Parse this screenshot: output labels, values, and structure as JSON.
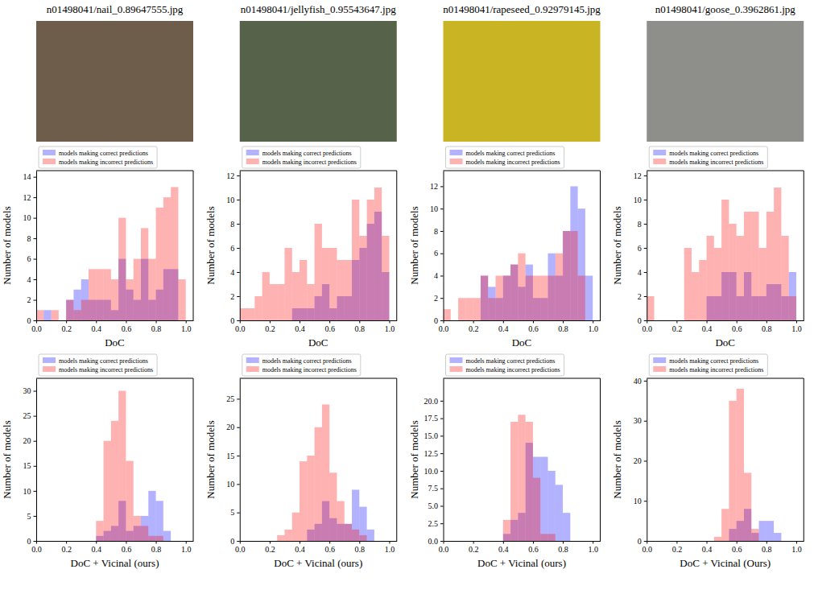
{
  "images": [
    {
      "caption": "n01498041/nail_0.89647555.jpg"
    },
    {
      "caption": "n01498041/jellyfish_0.95543647.jpg"
    },
    {
      "caption": "n01498041/rapeseed_0.92979145.jpg"
    },
    {
      "caption": "n01498041/goose_0.3962861.jpg"
    }
  ],
  "chart_data": [
    {
      "type": "histogram",
      "xlabel": "DoC",
      "ylabel": "Number of models",
      "legend": "top",
      "grid": false,
      "bins": [
        0,
        0.05,
        0.1,
        0.15,
        0.2,
        0.25,
        0.3,
        0.35,
        0.4,
        0.45,
        0.5,
        0.55,
        0.6,
        0.65,
        0.7,
        0.75,
        0.8,
        0.85,
        0.9,
        0.95,
        1
      ],
      "xlim": [
        0,
        1.05
      ],
      "xticks": [
        {
          "value": 0,
          "label": "0.0"
        },
        0.2,
        0.4,
        0.6,
        0.8,
        {
          "value": 1,
          "label": "1.0"
        }
      ],
      "ylim": [
        0,
        14.6
      ],
      "yticks": [
        0,
        2,
        4,
        6,
        8,
        10,
        12,
        14
      ],
      "series": [
        {
          "name": "models making correct predictions",
          "color": "#0000ff",
          "values": [
            0,
            1,
            0,
            0,
            2,
            3,
            4,
            2,
            2,
            2,
            1,
            6,
            3,
            2,
            6,
            2,
            3,
            5,
            5,
            0
          ]
        },
        {
          "name": "models making incorrect predictions",
          "color": "#ff0000",
          "values": [
            1,
            0,
            1,
            0,
            2,
            1,
            2,
            5,
            5,
            5,
            4,
            10,
            4,
            6,
            9,
            6,
            11,
            12,
            13,
            4
          ]
        }
      ]
    },
    {
      "type": "histogram",
      "xlabel": "DoC",
      "ylabel": "Number of models",
      "legend": "top",
      "grid": false,
      "bins": [
        0,
        0.05,
        0.1,
        0.15,
        0.2,
        0.25,
        0.3,
        0.35,
        0.4,
        0.45,
        0.5,
        0.55,
        0.6,
        0.65,
        0.7,
        0.75,
        0.8,
        0.85,
        0.9,
        0.95,
        1
      ],
      "xlim": [
        0,
        1.05
      ],
      "xticks": [
        {
          "value": 0,
          "label": "0.0"
        },
        0.2,
        0.4,
        0.6,
        0.8,
        {
          "value": 1,
          "label": "1.0"
        }
      ],
      "ylim": [
        0,
        12.4
      ],
      "yticks": [
        0,
        2,
        4,
        6,
        8,
        10,
        12
      ],
      "series": [
        {
          "name": "models making correct predictions",
          "color": "#0000ff",
          "values": [
            0,
            0,
            0,
            0,
            0,
            0,
            0,
            1,
            1,
            1,
            2,
            3,
            1,
            2,
            2,
            5,
            6,
            8,
            9,
            4
          ]
        },
        {
          "name": "models making incorrect predictions",
          "color": "#ff0000",
          "values": [
            1,
            1,
            2,
            4,
            3,
            3,
            6,
            4,
            5,
            3,
            8,
            6,
            6,
            5,
            5,
            10,
            7,
            10,
            11,
            7
          ]
        }
      ]
    },
    {
      "type": "histogram",
      "xlabel": "DoC",
      "ylabel": "Number of models",
      "legend": "top",
      "grid": false,
      "bins": [
        0,
        0.05,
        0.1,
        0.15,
        0.2,
        0.25,
        0.3,
        0.35,
        0.4,
        0.45,
        0.5,
        0.55,
        0.6,
        0.65,
        0.7,
        0.75,
        0.8,
        0.85,
        0.9,
        0.95,
        1
      ],
      "xlim": [
        0,
        1.05
      ],
      "xticks": [
        {
          "value": 0,
          "label": "0.0"
        },
        0.2,
        0.4,
        0.6,
        0.8,
        {
          "value": 1,
          "label": "1.0"
        }
      ],
      "ylim": [
        0,
        13.4
      ],
      "yticks": [
        0,
        2,
        4,
        6,
        8,
        10,
        12
      ],
      "series": [
        {
          "name": "models making correct predictions",
          "color": "#0000ff",
          "values": [
            0,
            0,
            0,
            0,
            0,
            4,
            3,
            2,
            4,
            5,
            3,
            5,
            2,
            2,
            6,
            4,
            8,
            12,
            10,
            4
          ]
        },
        {
          "name": "models making incorrect predictions",
          "color": "#ff0000",
          "values": [
            1,
            0,
            2,
            2,
            2,
            4,
            2,
            4,
            4,
            5,
            6,
            4,
            4,
            4,
            4,
            6,
            8,
            8,
            4,
            0
          ]
        }
      ]
    },
    {
      "type": "histogram",
      "xlabel": "DoC",
      "ylabel": "Number of models",
      "legend": "top",
      "grid": false,
      "bins": [
        0,
        0.05,
        0.1,
        0.15,
        0.2,
        0.25,
        0.3,
        0.35,
        0.4,
        0.45,
        0.5,
        0.55,
        0.6,
        0.65,
        0.7,
        0.75,
        0.8,
        0.85,
        0.9,
        0.95,
        1
      ],
      "xlim": [
        0,
        1.05
      ],
      "xticks": [
        {
          "value": 0,
          "label": "0.0"
        },
        0.2,
        0.4,
        0.6,
        0.8,
        {
          "value": 1,
          "label": "1.0"
        }
      ],
      "ylim": [
        0,
        12.4
      ],
      "yticks": [
        0,
        2,
        4,
        6,
        8,
        10,
        12
      ],
      "series": [
        {
          "name": "models making correct predictions",
          "color": "#0000ff",
          "values": [
            0,
            0,
            0,
            0,
            0,
            0,
            0,
            0,
            2,
            2,
            4,
            4,
            2,
            4,
            2,
            2,
            3,
            3,
            2,
            4
          ]
        },
        {
          "name": "models making incorrect predictions",
          "color": "#ff0000",
          "values": [
            2,
            0,
            0,
            0,
            0,
            6,
            4,
            5,
            7,
            6,
            10,
            8,
            7,
            9,
            9,
            6,
            9,
            11,
            7,
            2
          ]
        }
      ]
    },
    {
      "type": "histogram",
      "xlabel": "DoC + Vicinal (ours)",
      "ylabel": "Number of models",
      "legend": "top",
      "grid": false,
      "bins": [
        0,
        0.05,
        0.1,
        0.15,
        0.2,
        0.25,
        0.3,
        0.35,
        0.4,
        0.45,
        0.5,
        0.55,
        0.6,
        0.65,
        0.7,
        0.75,
        0.8,
        0.85,
        0.9,
        0.95,
        1
      ],
      "xlim": [
        0,
        1.05
      ],
      "xticks": [
        {
          "value": 0,
          "label": "0.0"
        },
        0.2,
        0.4,
        0.6,
        0.8,
        {
          "value": 1,
          "label": "1.0"
        }
      ],
      "ylim": [
        0,
        32.5
      ],
      "yticks": [
        0,
        5,
        10,
        15,
        20,
        25,
        30
      ],
      "series": [
        {
          "name": "models making correct predictions",
          "color": "#0000ff",
          "values": [
            0,
            0,
            0,
            0,
            0,
            0,
            0,
            0,
            1,
            2,
            3,
            8,
            2,
            3,
            5,
            10,
            8,
            2,
            0,
            0
          ]
        },
        {
          "name": "models making incorrect predictions",
          "color": "#ff0000",
          "values": [
            0,
            0,
            0,
            0,
            0,
            0,
            0,
            0,
            4,
            20,
            24,
            30,
            16,
            5,
            3,
            1,
            1,
            0,
            0,
            0
          ]
        }
      ]
    },
    {
      "type": "histogram",
      "xlabel": "DoC + Vicinal (ours)",
      "ylabel": "Number of models",
      "legend": "top",
      "grid": false,
      "bins": [
        0,
        0.05,
        0.1,
        0.15,
        0.2,
        0.25,
        0.3,
        0.35,
        0.4,
        0.45,
        0.5,
        0.55,
        0.6,
        0.65,
        0.7,
        0.75,
        0.8,
        0.85,
        0.9,
        0.95,
        1
      ],
      "xlim": [
        0,
        1.05
      ],
      "xticks": [
        {
          "value": 0,
          "label": "0.0"
        },
        0.2,
        0.4,
        0.6,
        0.8,
        {
          "value": 1,
          "label": "1.0"
        }
      ],
      "ylim": [
        0,
        28.6
      ],
      "yticks": [
        0,
        5,
        10,
        15,
        20,
        25
      ],
      "series": [
        {
          "name": "models making correct predictions",
          "color": "#0000ff",
          "values": [
            0,
            0,
            0,
            0,
            0,
            0,
            0,
            0,
            0,
            2,
            3,
            7,
            4,
            3,
            3,
            9,
            6,
            2,
            0,
            0
          ]
        },
        {
          "name": "models making incorrect predictions",
          "color": "#ff0000",
          "values": [
            0,
            0,
            0,
            0,
            0,
            1,
            2,
            5,
            14,
            15,
            20,
            24,
            12,
            7,
            3,
            2,
            1,
            0,
            0,
            0
          ]
        }
      ]
    },
    {
      "type": "histogram",
      "xlabel": "DoC + Vicinal (ours)",
      "ylabel": "Number of models",
      "legend": "top",
      "grid": false,
      "bins": [
        0,
        0.05,
        0.1,
        0.15,
        0.2,
        0.25,
        0.3,
        0.35,
        0.4,
        0.45,
        0.5,
        0.55,
        0.6,
        0.65,
        0.7,
        0.75,
        0.8,
        0.85,
        0.9,
        0.95,
        1
      ],
      "xlim": [
        0,
        1.05
      ],
      "xticks": [
        {
          "value": 0,
          "label": "0.0"
        },
        0.2,
        0.4,
        0.6,
        0.8,
        {
          "value": 1,
          "label": "1.0"
        }
      ],
      "ylim": [
        0,
        23.2
      ],
      "yticks": [
        {
          "value": 0,
          "label": "0.0"
        },
        2.5,
        {
          "value": 5,
          "label": "5.0"
        },
        7.5,
        {
          "value": 10,
          "label": "10.0"
        },
        12.5,
        {
          "value": 15,
          "label": "15.0"
        },
        17.5,
        {
          "value": 20,
          "label": "20.0"
        }
      ],
      "series": [
        {
          "name": "models making correct predictions",
          "color": "#0000ff",
          "values": [
            0,
            0,
            0,
            0,
            0,
            0,
            0,
            0,
            1,
            3,
            4,
            14,
            12,
            12,
            10,
            8,
            4,
            0,
            0,
            0
          ]
        },
        {
          "name": "models making incorrect predictions",
          "color": "#ff0000",
          "values": [
            0,
            0,
            0,
            0,
            0,
            0,
            0,
            0,
            3,
            17,
            18,
            17,
            9,
            1,
            1,
            0,
            0,
            0,
            0,
            0
          ]
        }
      ]
    },
    {
      "type": "histogram",
      "xlabel": "DoC + Vicinal (Ours)",
      "ylabel": "Number of models",
      "legend": "top",
      "grid": false,
      "bins": [
        0,
        0.05,
        0.1,
        0.15,
        0.2,
        0.25,
        0.3,
        0.35,
        0.4,
        0.45,
        0.5,
        0.55,
        0.6,
        0.65,
        0.7,
        0.75,
        0.8,
        0.85,
        0.9,
        0.95,
        1
      ],
      "xlim": [
        0,
        1.05
      ],
      "xticks": [
        {
          "value": 0,
          "label": "0.0"
        },
        0.2,
        0.4,
        0.6,
        0.8,
        {
          "value": 1,
          "label": "1.0"
        }
      ],
      "ylim": [
        0,
        40.6
      ],
      "yticks": [
        0,
        10,
        20,
        30,
        40
      ],
      "series": [
        {
          "name": "models making correct predictions",
          "color": "#0000ff",
          "values": [
            0,
            0,
            0,
            0,
            0,
            0,
            0,
            0,
            0,
            0,
            0,
            3,
            5,
            8,
            2,
            5,
            5,
            2,
            0,
            0
          ]
        },
        {
          "name": "models making incorrect predictions",
          "color": "#ff0000",
          "values": [
            0,
            0,
            0,
            0,
            0,
            0,
            0,
            0,
            0,
            1,
            8,
            35,
            38,
            17,
            3,
            0,
            0,
            0,
            0,
            0
          ]
        }
      ]
    }
  ]
}
